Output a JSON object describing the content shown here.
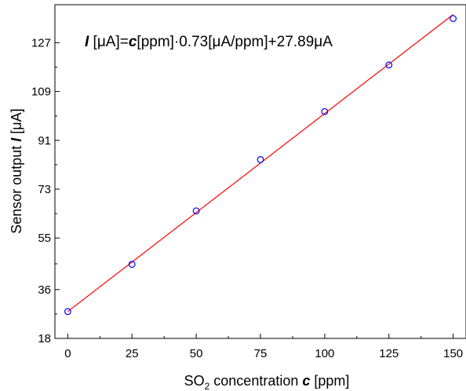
{
  "chart_data": {
    "type": "scatter",
    "xlabel": {
      "prefix": "SO",
      "sub": "2",
      "middle": " concentration ",
      "var": "c",
      "unit": " [ppm]"
    },
    "ylabel": {
      "prefix": "Sensor output ",
      "var": "I",
      "unit": " [μA]"
    },
    "annotation": {
      "var1": "I",
      "text1": " [μA]=",
      "var2": "c",
      "text2": "[ppm]·0.73[μA/ppm]+27.89μA"
    },
    "xlim": [
      -5,
      155
    ],
    "ylim": [
      18,
      141
    ],
    "x_ticks": [
      0,
      25,
      50,
      75,
      100,
      125,
      150
    ],
    "y_ticks": [
      18,
      36,
      55,
      73,
      91,
      109,
      127
    ],
    "grid": false,
    "legend": "none",
    "series": [
      {
        "kind": "points",
        "marker": "open-circle",
        "color": "#0000ff",
        "x": [
          0,
          25,
          50,
          75,
          100,
          125,
          150
        ],
        "y": [
          27.9,
          45.3,
          65.0,
          83.9,
          101.6,
          118.8,
          135.9
        ]
      },
      {
        "kind": "fit-line",
        "color": "#ff0000",
        "slope": 0.73,
        "intercept": 27.89,
        "x_range": [
          0,
          150
        ]
      }
    ]
  }
}
